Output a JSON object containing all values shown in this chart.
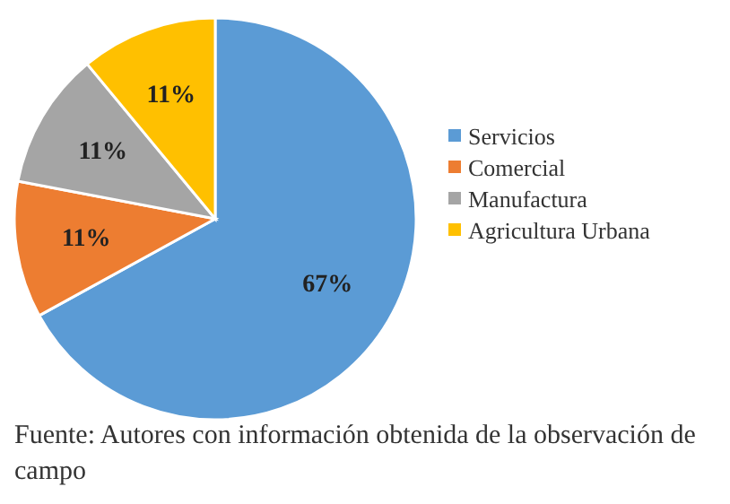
{
  "chart_data": {
    "type": "pie",
    "categories": [
      "Servicios",
      "Comercial",
      "Manufactura",
      "Agricultura Urbana"
    ],
    "values": [
      67,
      11,
      11,
      11
    ],
    "colors": [
      "#5b9bd5",
      "#ed7d31",
      "#a5a5a5",
      "#ffc000"
    ],
    "value_labels": [
      "67%",
      "11%",
      "11%",
      "11%"
    ],
    "legend": "right",
    "annotations": [
      "Fuente: Autores con información obtenida de la observación de campo"
    ]
  }
}
